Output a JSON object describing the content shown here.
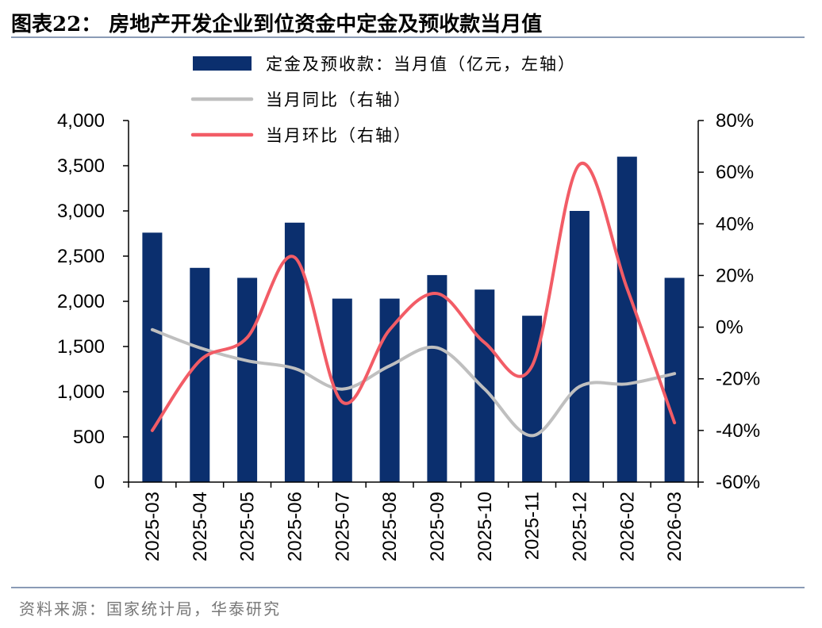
{
  "header": {
    "title": "图表22：  房地产开发企业到位资金中定金及预收款当月值",
    "source": "资料来源：国家统计局，华泰研究"
  },
  "chart_data": {
    "type": "bar",
    "title": "房地产开发企业到位资金中定金及预收款当月值",
    "categories": [
      "2025-03",
      "2025-04",
      "2025-05",
      "2025-06",
      "2025-07",
      "2025-08",
      "2025-09",
      "2025-10",
      "2025-11",
      "2025-12",
      "2026-02",
      "2026-03"
    ],
    "left_axis": {
      "ylim": [
        0,
        4000
      ],
      "ticks": [
        0,
        500,
        1000,
        1500,
        2000,
        2500,
        3000,
        3500,
        4000
      ],
      "tick_labels": [
        "0",
        "500",
        "1,000",
        "1,500",
        "2,000",
        "2,500",
        "3,000",
        "3,500",
        "4,000"
      ]
    },
    "right_axis": {
      "ylim": [
        -60,
        80
      ],
      "ticks": [
        -60,
        -40,
        -20,
        0,
        20,
        40,
        60,
        80
      ],
      "tick_labels": [
        "-60%",
        "-40%",
        "-20%",
        "0%",
        "20%",
        "40%",
        "60%",
        "80%"
      ]
    },
    "series": [
      {
        "name": "定金及预收款：当月值（亿元，左轴）",
        "kind": "bar",
        "axis": "left",
        "color": "#0b2f6e",
        "values": [
          2760,
          2370,
          2260,
          2870,
          2030,
          2030,
          2290,
          2130,
          1840,
          3000,
          3600,
          2260
        ]
      },
      {
        "name": "当月同比（右轴）",
        "kind": "line",
        "axis": "right",
        "color": "#bfbfbf",
        "values": [
          -1,
          -8,
          -13,
          -16,
          -24,
          -15,
          -8,
          -24,
          -42,
          -23,
          -22,
          -18
        ]
      },
      {
        "name": "当月环比（右轴）",
        "kind": "line",
        "axis": "right",
        "color": "#f25c66",
        "values": [
          -40,
          -13,
          -4,
          27,
          -29,
          -1,
          13,
          -6,
          -15,
          63,
          15,
          -37
        ]
      }
    ]
  }
}
